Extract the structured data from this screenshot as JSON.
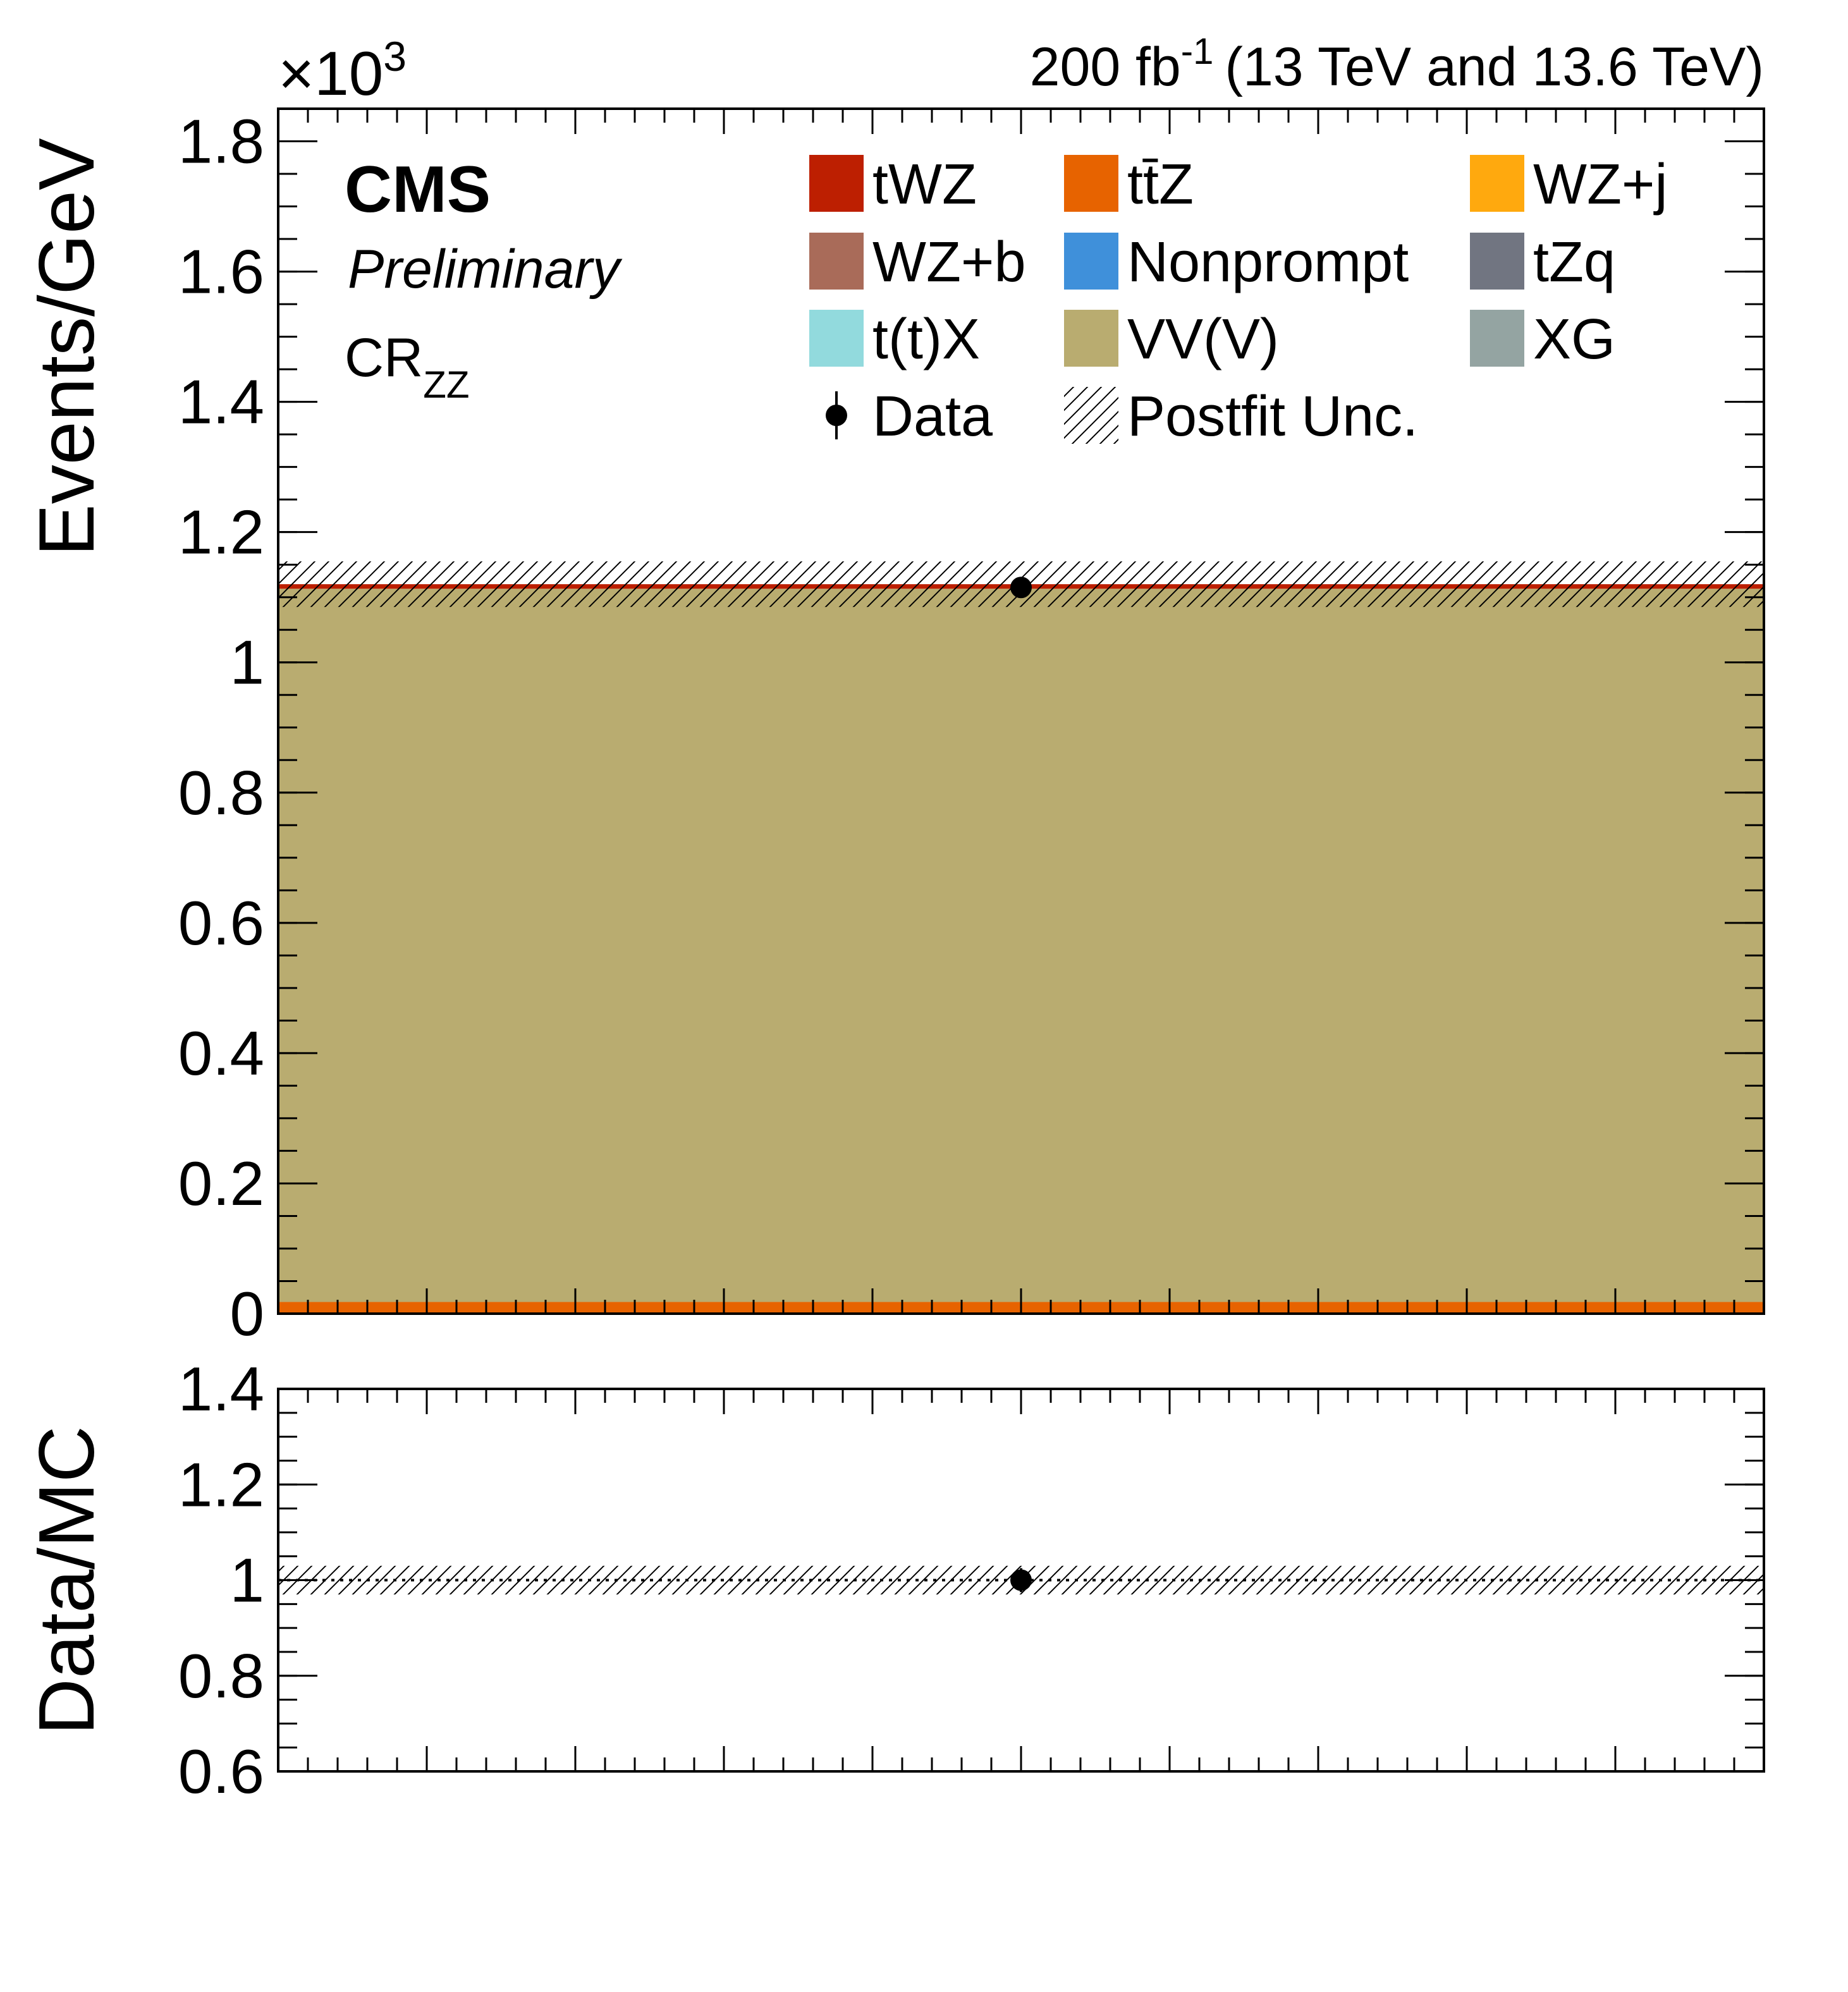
{
  "header": {
    "lumi_text": "200 fb",
    "lumi_sup": "-1",
    "energy_text": "(13 TeV and 13.6 TeV)",
    "experiment": "CMS",
    "status": "Preliminary",
    "region_main": "CR",
    "region_sub": "ZZ"
  },
  "colors": {
    "tWZ": "#bd1f01",
    "ttZ": "#e76300",
    "WZj": "#ffa90e",
    "WZb": "#a96b59",
    "Nonprompt": "#3f90da",
    "tZq": "#717581",
    "ttX": "#92dadd",
    "VVV": "#b9ac70",
    "XG": "#94a4a2"
  },
  "chart_data": [
    {
      "name": "main",
      "type": "bar",
      "stacked": true,
      "scale_label": {
        "main": "×10",
        "sup": "3"
      },
      "ylabel": "Events/GeV",
      "ylim": [
        0,
        1.85
      ],
      "yticks": [
        "0",
        "0.2",
        "0.4",
        "0.6",
        "0.8",
        "1",
        "1.2",
        "1.4",
        "1.6",
        "1.8"
      ],
      "ytick_values": [
        0,
        0.2,
        0.4,
        0.6,
        0.8,
        1.0,
        1.2,
        1.4,
        1.6,
        1.8
      ],
      "series": [
        {
          "name": "ttZ",
          "values": [
            0.018
          ]
        },
        {
          "name": "VVV",
          "values": [
            1.095
          ]
        },
        {
          "name": "tWZ",
          "values": [
            0.007
          ]
        }
      ],
      "total": 1.12,
      "uncertainty": [
        1.085,
        1.155
      ],
      "data": {
        "value": 1.115,
        "error": 0.01
      }
    },
    {
      "name": "ratio",
      "type": "scatter",
      "ylabel": "Data/MC",
      "ylim": [
        0.6,
        1.4
      ],
      "yticks": [
        "0.6",
        "0.8",
        "1",
        "1.2",
        "1.4"
      ],
      "ytick_values": [
        0.6,
        0.8,
        1.0,
        1.2,
        1.4
      ],
      "reference": 1.0,
      "uncertainty": [
        0.97,
        1.03
      ],
      "data": {
        "value": 1.0,
        "error": 0.025
      }
    }
  ],
  "legend": [
    {
      "label": "tWZ",
      "color_key": "tWZ",
      "kind": "fill"
    },
    {
      "label": "tt̄Z",
      "color_key": "ttZ",
      "kind": "fill"
    },
    {
      "label": "WZ+j",
      "color_key": "WZj",
      "kind": "fill"
    },
    {
      "label": "WZ+b",
      "color_key": "WZb",
      "kind": "fill"
    },
    {
      "label": "Nonprompt",
      "color_key": "Nonprompt",
      "kind": "fill"
    },
    {
      "label": "tZq",
      "color_key": "tZq",
      "kind": "fill"
    },
    {
      "label": "t(t)X",
      "color_key": "ttX",
      "kind": "fill"
    },
    {
      "label": "VV(V)",
      "color_key": "VVV",
      "kind": "fill"
    },
    {
      "label": "XG",
      "color_key": "XG",
      "kind": "fill"
    },
    {
      "label": "Data",
      "kind": "marker"
    },
    {
      "label": "Postfit Unc.",
      "kind": "hatch"
    }
  ]
}
